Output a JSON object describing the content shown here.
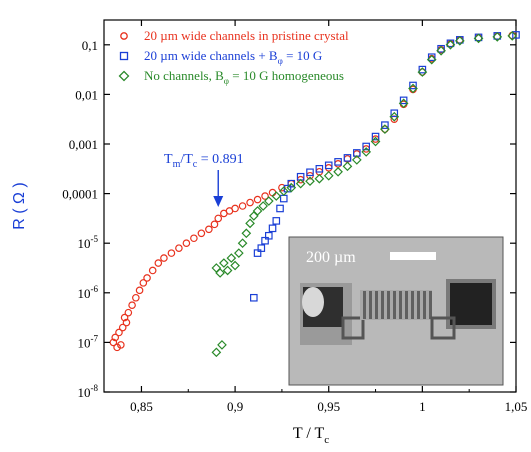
{
  "chart_data": {
    "type": "scatter",
    "xlabel": "T / T",
    "xlabel_sub": "c",
    "ylabel": "R ( Ω )",
    "xlim": [
      0.83,
      1.05
    ],
    "ylim_log10": [
      -8,
      -0.5
    ],
    "x_ticks": [
      {
        "v": 0.85,
        "label": "0,85"
      },
      {
        "v": 0.9,
        "label": "0,9"
      },
      {
        "v": 0.95,
        "label": "0,95"
      },
      {
        "v": 1.0,
        "label": "1"
      },
      {
        "v": 1.05,
        "label": "1,05"
      }
    ],
    "y_ticks": [
      {
        "e": -1,
        "label": "0,1"
      },
      {
        "e": -2,
        "label": "0,01"
      },
      {
        "e": -3,
        "label": "0,001"
      },
      {
        "e": -4,
        "label": "0,0001"
      },
      {
        "e": -5,
        "label": "10",
        "sup": "-5"
      },
      {
        "e": -6,
        "label": "10",
        "sup": "-6"
      },
      {
        "e": -7,
        "label": "10",
        "sup": "-7"
      },
      {
        "e": -8,
        "label": "10",
        "sup": "-8"
      }
    ],
    "annotation": {
      "text_pre": "T",
      "sub1": "m",
      "text_mid": "/T",
      "sub2": "c",
      "text_post": " = 0.891",
      "x": 0.891
    },
    "inset": {
      "scale_label": "200 µm"
    },
    "series": [
      {
        "name": "20 µm wide channels in pristine crystal",
        "marker": "circle",
        "color": "#e8321e",
        "points": [
          [
            0.835,
            -7.0
          ],
          [
            0.836,
            -6.9
          ],
          [
            0.837,
            -7.1
          ],
          [
            0.838,
            -6.8
          ],
          [
            0.839,
            -7.05
          ],
          [
            0.84,
            -6.7
          ],
          [
            0.841,
            -6.5
          ],
          [
            0.842,
            -6.6
          ],
          [
            0.843,
            -6.4
          ],
          [
            0.845,
            -6.25
          ],
          [
            0.847,
            -6.1
          ],
          [
            0.849,
            -5.95
          ],
          [
            0.851,
            -5.8
          ],
          [
            0.853,
            -5.7
          ],
          [
            0.856,
            -5.55
          ],
          [
            0.859,
            -5.4
          ],
          [
            0.862,
            -5.3
          ],
          [
            0.866,
            -5.2
          ],
          [
            0.87,
            -5.1
          ],
          [
            0.874,
            -5.0
          ],
          [
            0.878,
            -4.9
          ],
          [
            0.882,
            -4.8
          ],
          [
            0.886,
            -4.72
          ],
          [
            0.889,
            -4.62
          ],
          [
            0.891,
            -4.5
          ],
          [
            0.894,
            -4.4
          ],
          [
            0.897,
            -4.35
          ],
          [
            0.9,
            -4.3
          ],
          [
            0.904,
            -4.25
          ],
          [
            0.908,
            -4.18
          ],
          [
            0.912,
            -4.12
          ],
          [
            0.916,
            -4.05
          ],
          [
            0.92,
            -3.98
          ],
          [
            0.925,
            -3.88
          ],
          [
            0.93,
            -3.8
          ],
          [
            0.935,
            -3.72
          ],
          [
            0.94,
            -3.64
          ],
          [
            0.945,
            -3.56
          ],
          [
            0.95,
            -3.48
          ],
          [
            0.955,
            -3.4
          ],
          [
            0.96,
            -3.3
          ],
          [
            0.965,
            -3.2
          ],
          [
            0.97,
            -3.1
          ],
          [
            0.975,
            -2.9
          ],
          [
            0.98,
            -2.7
          ],
          [
            0.985,
            -2.5
          ],
          [
            0.99,
            -2.2
          ],
          [
            0.995,
            -1.9
          ],
          [
            1.0,
            -1.55
          ],
          [
            1.005,
            -1.28
          ],
          [
            1.01,
            -1.1
          ],
          [
            1.015,
            -0.98
          ],
          [
            1.02,
            -0.9
          ],
          [
            1.03,
            -0.86
          ],
          [
            1.04,
            -0.83
          ],
          [
            1.048,
            -0.81
          ]
        ]
      },
      {
        "name": "20 µm wide channels + B",
        "name_sub": "φ",
        "name_post": " = 10 G",
        "marker": "square",
        "color": "#1a3fd6",
        "points": [
          [
            0.91,
            -6.1
          ],
          [
            0.912,
            -5.2
          ],
          [
            0.914,
            -5.1
          ],
          [
            0.916,
            -4.95
          ],
          [
            0.918,
            -4.85
          ],
          [
            0.92,
            -4.7
          ],
          [
            0.922,
            -4.55
          ],
          [
            0.924,
            -4.3
          ],
          [
            0.926,
            -4.1
          ],
          [
            0.928,
            -3.9
          ],
          [
            0.93,
            -3.8
          ],
          [
            0.935,
            -3.66
          ],
          [
            0.94,
            -3.57
          ],
          [
            0.945,
            -3.5
          ],
          [
            0.95,
            -3.43
          ],
          [
            0.955,
            -3.36
          ],
          [
            0.96,
            -3.28
          ],
          [
            0.965,
            -3.18
          ],
          [
            0.97,
            -3.05
          ],
          [
            0.975,
            -2.85
          ],
          [
            0.98,
            -2.62
          ],
          [
            0.985,
            -2.38
          ],
          [
            0.99,
            -2.12
          ],
          [
            0.995,
            -1.82
          ],
          [
            1.0,
            -1.5
          ],
          [
            1.005,
            -1.25
          ],
          [
            1.01,
            -1.08
          ],
          [
            1.015,
            -0.97
          ],
          [
            1.02,
            -0.9
          ],
          [
            1.03,
            -0.85
          ],
          [
            1.04,
            -0.82
          ],
          [
            1.05,
            -0.8
          ]
        ]
      },
      {
        "name": "No channels, B",
        "name_sub": "φ",
        "name_post": " = 10 G homogeneous",
        "marker": "diamond",
        "color": "#2a8a2a",
        "points": [
          [
            0.89,
            -7.2
          ],
          [
            0.893,
            -7.05
          ],
          [
            0.89,
            -5.5
          ],
          [
            0.892,
            -5.6
          ],
          [
            0.894,
            -5.4
          ],
          [
            0.896,
            -5.55
          ],
          [
            0.898,
            -5.3
          ],
          [
            0.9,
            -5.45
          ],
          [
            0.902,
            -5.2
          ],
          [
            0.904,
            -5.0
          ],
          [
            0.906,
            -4.8
          ],
          [
            0.908,
            -4.6
          ],
          [
            0.91,
            -4.45
          ],
          [
            0.912,
            -4.35
          ],
          [
            0.915,
            -4.25
          ],
          [
            0.918,
            -4.15
          ],
          [
            0.922,
            -4.05
          ],
          [
            0.926,
            -3.95
          ],
          [
            0.93,
            -3.88
          ],
          [
            0.935,
            -3.8
          ],
          [
            0.94,
            -3.75
          ],
          [
            0.945,
            -3.7
          ],
          [
            0.95,
            -3.64
          ],
          [
            0.955,
            -3.56
          ],
          [
            0.96,
            -3.45
          ],
          [
            0.965,
            -3.32
          ],
          [
            0.97,
            -3.16
          ],
          [
            0.975,
            -2.95
          ],
          [
            0.98,
            -2.7
          ],
          [
            0.985,
            -2.45
          ],
          [
            0.99,
            -2.18
          ],
          [
            0.995,
            -1.88
          ],
          [
            1.0,
            -1.55
          ],
          [
            1.005,
            -1.3
          ],
          [
            1.01,
            -1.12
          ],
          [
            1.015,
            -1.0
          ],
          [
            1.02,
            -0.92
          ],
          [
            1.03,
            -0.87
          ],
          [
            1.04,
            -0.84
          ],
          [
            1.048,
            -0.82
          ]
        ]
      }
    ]
  }
}
